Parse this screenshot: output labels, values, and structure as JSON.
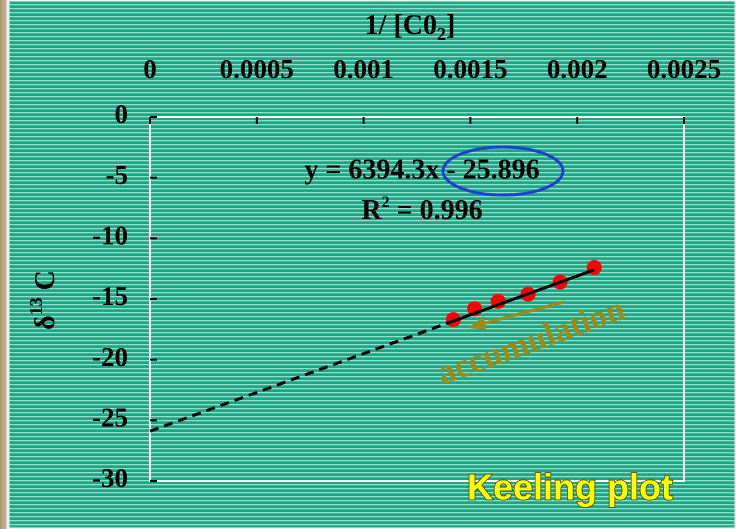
{
  "chart_data": {
    "type": "scatter",
    "title": {
      "base": "1/ [C0",
      "sub": "2",
      "end": "]"
    },
    "y_label": {
      "base": "δ",
      "sup": "13",
      "end": " C"
    },
    "x": [
      0.00142,
      0.00152,
      0.00163,
      0.00177,
      0.00192,
      0.00208
    ],
    "series": [
      {
        "name": "δ13C",
        "color": "#ff0000",
        "values": [
          -16.7,
          -15.8,
          -15.2,
          -14.6,
          -13.6,
          -12.4
        ]
      }
    ],
    "fit": {
      "slope": 6394.3,
      "intercept": -25.896
    },
    "equation": "y = 6394.3x - 25.896",
    "r2": {
      "base": "R",
      "sup": "2",
      "rest": " = 0.996"
    },
    "annotation": "accumulation",
    "caption": "Keeling plot",
    "xlim": [
      0,
      0.0025
    ],
    "xticks": [
      0,
      0.0005,
      0.001,
      0.0015,
      0.002,
      0.0025
    ],
    "ylim": [
      -30,
      0
    ],
    "yticks": [
      0,
      -5,
      -10,
      -15,
      -20,
      -25,
      -30
    ]
  }
}
